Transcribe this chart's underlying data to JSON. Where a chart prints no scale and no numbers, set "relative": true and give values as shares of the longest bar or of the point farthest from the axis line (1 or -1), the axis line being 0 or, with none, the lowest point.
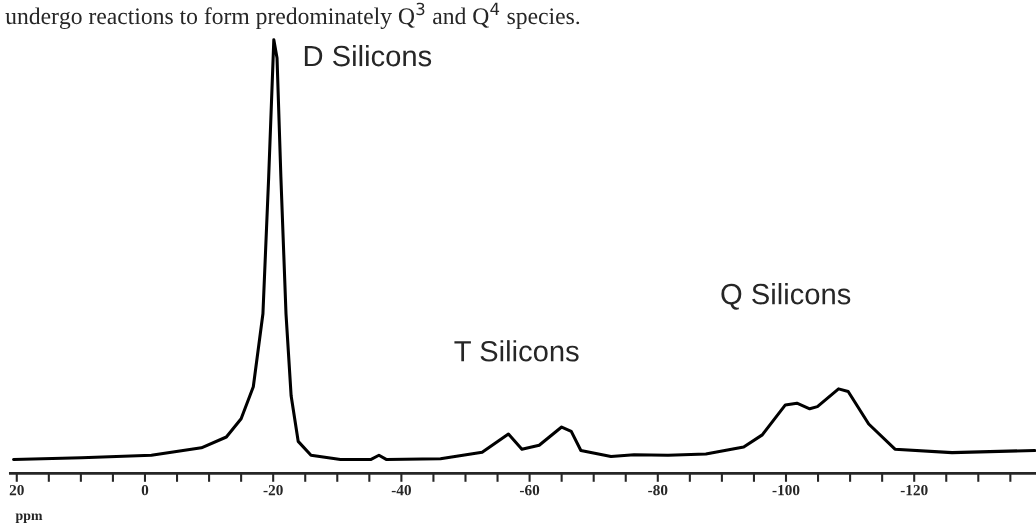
{
  "chart_data": {
    "type": "line",
    "relative": true,
    "xlabel": "ppm",
    "x": [
      20.5,
      9.9,
      -1,
      -8.8,
      -12.7,
      -15,
      -16.9,
      -18.4,
      -19.3,
      -20.1,
      -20.6,
      -21.2,
      -22,
      -22.8,
      -23.9,
      -25.9,
      -30.5,
      -35.2,
      -36.5,
      -37.7,
      -46.1,
      -52.6,
      -56.7,
      -58.8,
      -61.5,
      -65,
      -66.5,
      -68,
      -72.7,
      -76.3,
      -81.6,
      -87.5,
      -93.4,
      -96.3,
      -99.9,
      -101.7,
      -103.7,
      -104.9,
      -108.2,
      -109.7,
      -112.9,
      -117,
      -125.9,
      -138.8
    ],
    "series": [
      {
        "color": "#000000",
        "values": [
          0.032,
          0.036,
          0.042,
          0.059,
          0.084,
          0.126,
          0.2,
          0.368,
          0.684,
          1,
          0.958,
          0.684,
          0.368,
          0.179,
          0.074,
          0.042,
          0.032,
          0.032,
          0.042,
          0.032,
          0.034,
          0.049,
          0.091,
          0.056,
          0.065,
          0.107,
          0.097,
          0.053,
          0.039,
          0.043,
          0.042,
          0.045,
          0.061,
          0.089,
          0.158,
          0.162,
          0.149,
          0.154,
          0.195,
          0.189,
          0.114,
          0.056,
          0.048,
          0.053
        ]
      }
    ],
    "xlim": [
      21,
      -139
    ],
    "xticks": [
      20,
      {
        "value": 15,
        "label": null
      },
      {
        "value": 10,
        "label": null
      },
      {
        "value": 5,
        "label": null
      },
      0,
      {
        "value": -5,
        "label": null
      },
      {
        "value": -10,
        "label": null
      },
      {
        "value": -15,
        "label": null
      },
      -20,
      {
        "value": -25,
        "label": null
      },
      {
        "value": -30,
        "label": null
      },
      {
        "value": -35,
        "label": null
      },
      -40,
      {
        "value": -45,
        "label": null
      },
      {
        "value": -50,
        "label": null
      },
      {
        "value": -55,
        "label": null
      },
      -60,
      {
        "value": -65,
        "label": null
      },
      {
        "value": -70,
        "label": null
      },
      {
        "value": -75,
        "label": null
      },
      -80,
      {
        "value": -85,
        "label": null
      },
      {
        "value": -90,
        "label": null
      },
      {
        "value": -95,
        "label": null
      },
      -100,
      {
        "value": -105,
        "label": null
      },
      {
        "value": -110,
        "label": null
      },
      {
        "value": -115,
        "label": null
      },
      -120,
      {
        "value": -125,
        "label": null
      },
      {
        "value": -130,
        "label": null
      },
      {
        "value": -135,
        "label": null
      }
    ],
    "annotations": [
      "undergo reactions to form predominately Q$^{3}$ and Q$^{4}$ species.",
      "D Silicons",
      "T Silicons",
      "Q Silicons"
    ],
    "grid": false,
    "legend": false
  }
}
